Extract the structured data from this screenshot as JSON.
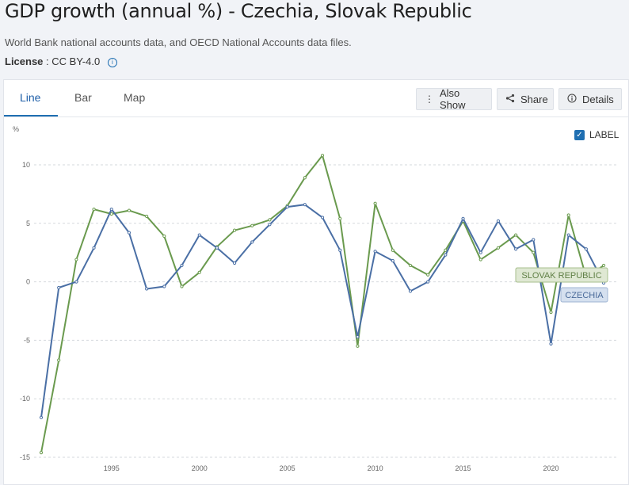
{
  "header": {
    "title": "GDP growth (annual %) - Czechia, Slovak Republic",
    "source": "World Bank national accounts data, and OECD National Accounts data files.",
    "license_label": "License",
    "license_value": ": CC BY-4.0"
  },
  "tabs": [
    {
      "label": "Line"
    },
    {
      "label": "Bar"
    },
    {
      "label": "Map"
    }
  ],
  "toolbar": {
    "also_show": "Also Show",
    "share": "Share",
    "details": "Details"
  },
  "label_toggle": "LABEL",
  "colors": {
    "czechia": "#4a6fa5",
    "slovakia": "#6a9a4e",
    "grid": "#d6d9de",
    "accent": "#1f6fb2"
  },
  "chart_data": {
    "type": "line",
    "title": "GDP growth (annual %) - Czechia, Slovak Republic",
    "ylabel": "%",
    "xlabel": "",
    "ylim": [
      -15,
      12
    ],
    "xlim": [
      1990.6,
      2023.6
    ],
    "yticks": [
      10,
      5,
      0,
      -5,
      -10,
      -15
    ],
    "xticks": [
      1995,
      2000,
      2005,
      2010,
      2015,
      2020
    ],
    "x": [
      1991,
      1992,
      1993,
      1994,
      1995,
      1996,
      1997,
      1998,
      1999,
      2000,
      2001,
      2002,
      2003,
      2004,
      2005,
      2006,
      2007,
      2008,
      2009,
      2010,
      2011,
      2012,
      2013,
      2014,
      2015,
      2016,
      2017,
      2018,
      2019,
      2020,
      2021,
      2022,
      2023
    ],
    "series": [
      {
        "name": "Czechia",
        "label": "CZECHIA",
        "values": [
          -11.6,
          -0.5,
          0.0,
          2.9,
          6.2,
          4.2,
          -0.6,
          -0.4,
          1.4,
          4.0,
          2.9,
          1.6,
          3.4,
          4.9,
          6.4,
          6.6,
          5.5,
          2.7,
          -4.7,
          2.6,
          1.8,
          -0.8,
          0.0,
          2.3,
          5.4,
          2.5,
          5.2,
          2.8,
          3.6,
          -5.3,
          4.0,
          2.8,
          -0.1
        ]
      },
      {
        "name": "Slovak Republic",
        "label": "SLOVAK REPUBLIC",
        "values": [
          -14.6,
          -6.7,
          1.9,
          6.2,
          5.8,
          6.1,
          5.6,
          3.9,
          -0.4,
          0.8,
          3.0,
          4.4,
          4.8,
          5.3,
          6.5,
          8.9,
          10.8,
          5.4,
          -5.5,
          6.7,
          2.7,
          1.4,
          0.6,
          2.7,
          5.2,
          1.9,
          2.9,
          4.0,
          2.5,
          -2.6,
          5.7,
          0.4,
          1.4
        ]
      }
    ]
  }
}
